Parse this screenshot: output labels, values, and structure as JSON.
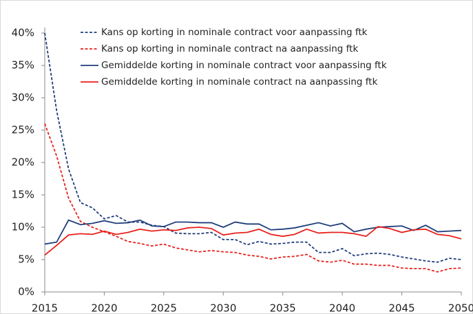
{
  "chart_data": {
    "type": "line",
    "x": [
      2015,
      2016,
      2017,
      2018,
      2019,
      2020,
      2021,
      2022,
      2023,
      2024,
      2025,
      2026,
      2027,
      2028,
      2029,
      2030,
      2031,
      2032,
      2033,
      2034,
      2035,
      2036,
      2037,
      2038,
      2039,
      2040,
      2041,
      2042,
      2043,
      2044,
      2045,
      2046,
      2047,
      2048,
      2049,
      2050
    ],
    "series": [
      {
        "name": "Kans op korting in nominale contract voor aanpassing ftk",
        "color": "#1f3d7a",
        "dashed": true,
        "values": [
          40,
          28,
          19,
          13.8,
          13,
          11.3,
          11.8,
          10.8,
          10.8,
          10.3,
          10.1,
          9.1,
          9.0,
          9.0,
          9.2,
          8.1,
          8.1,
          7.3,
          7.8,
          7.4,
          7.5,
          7.7,
          7.7,
          6.1,
          6.1,
          6.7,
          5.6,
          5.9,
          6.0,
          5.8,
          5.4,
          5.1,
          4.8,
          4.6,
          5.2,
          5.0
        ]
      },
      {
        "name": "Kans op korting in nominale contract na aanpassing ftk",
        "color": "#e8201c",
        "dashed": true,
        "values": [
          26,
          21,
          14.5,
          10.9,
          10.0,
          9.3,
          8.6,
          7.8,
          7.5,
          7.1,
          7.4,
          6.8,
          6.5,
          6.2,
          6.4,
          6.2,
          6.1,
          5.7,
          5.5,
          5.1,
          5.4,
          5.5,
          5.8,
          4.8,
          4.6,
          4.9,
          4.3,
          4.3,
          4.1,
          4.1,
          3.7,
          3.6,
          3.6,
          3.1,
          3.6,
          3.7
        ]
      },
      {
        "name": "Gemiddelde korting in nominale contract voor aanpassing ftk",
        "color": "#1f3d7a",
        "dashed": false,
        "values": [
          7.4,
          7.7,
          11.1,
          10.4,
          10.6,
          11.0,
          10.6,
          10.7,
          11.1,
          10.2,
          10.1,
          10.8,
          10.8,
          10.7,
          10.7,
          10.0,
          10.8,
          10.5,
          10.5,
          9.6,
          9.7,
          9.9,
          10.3,
          10.7,
          10.2,
          10.6,
          9.3,
          9.7,
          10.0,
          10.1,
          10.2,
          9.5,
          10.3,
          9.3,
          9.4,
          9.5
        ]
      },
      {
        "name": "Gemiddelde korting in nominale contract na aanpassing ftk",
        "color": "#e8201c",
        "dashed": false,
        "values": [
          5.7,
          7.2,
          8.8,
          9.0,
          8.9,
          9.4,
          8.9,
          9.2,
          9.7,
          9.4,
          9.6,
          9.5,
          9.9,
          10.0,
          9.8,
          8.8,
          9.1,
          9.2,
          9.7,
          8.9,
          8.6,
          8.9,
          9.7,
          9.1,
          9.2,
          9.2,
          9.0,
          8.6,
          10.1,
          9.8,
          9.2,
          9.6,
          9.7,
          8.9,
          8.7,
          8.2
        ]
      }
    ],
    "xlim": [
      2015,
      2050
    ],
    "xticks": [
      2015,
      2020,
      2025,
      2030,
      2035,
      2040,
      2045,
      2050
    ],
    "ylim": [
      0,
      40
    ],
    "yticks": [
      {
        "value": 0,
        "label": "0%"
      },
      {
        "value": 5,
        "label": "5%"
      },
      {
        "value": 10,
        "label": "10%"
      },
      {
        "value": 15,
        "label": "15%"
      },
      {
        "value": 20,
        "label": "20%"
      },
      {
        "value": 25,
        "label": "25%"
      },
      {
        "value": 30,
        "label": "30%"
      },
      {
        "value": 35,
        "label": "35%"
      },
      {
        "value": 40,
        "label": "40%"
      }
    ],
    "legend": "top"
  }
}
